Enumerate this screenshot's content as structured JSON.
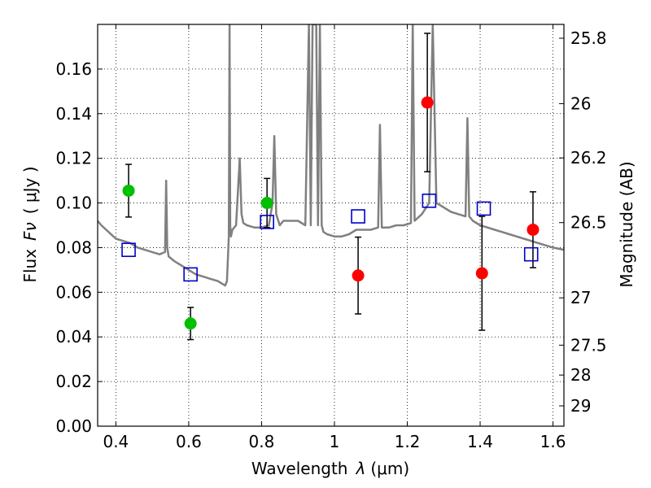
{
  "chart_data": {
    "type": "scatter",
    "title": "",
    "xlabel_parts": {
      "text": "Wavelength",
      "symbol": "λ",
      "unit": "(μm)"
    },
    "ylabel_parts": {
      "text": "Flux",
      "symbol": "Fν",
      "unit": "( μJy )"
    },
    "ylabel_right": "Magnitude (AB)",
    "xlim": [
      0.35,
      1.63
    ],
    "ylim": [
      0,
      0.18
    ],
    "grid": true,
    "grid_style": "dotted",
    "x_ticks": [
      0.4,
      0.6,
      0.8,
      1.0,
      1.2,
      1.4,
      1.6
    ],
    "x_tick_labels": [
      "0.4",
      "0.6",
      "0.8",
      "1",
      "1.2",
      "1.4",
      "1.6"
    ],
    "y_ticks": [
      0.0,
      0.02,
      0.04,
      0.06,
      0.08,
      0.1,
      0.12,
      0.14,
      0.16
    ],
    "y_tick_labels": [
      "0.00",
      "0.02",
      "0.04",
      "0.06",
      "0.08",
      "0.10",
      "0.12",
      "0.14",
      "0.16"
    ],
    "right_ticks": [
      {
        "label": "25.8",
        "flux": 0.1738
      },
      {
        "label": "26",
        "flux": 0.1445
      },
      {
        "label": "26.2",
        "flux": 0.1202
      },
      {
        "label": "26.5",
        "flux": 0.0912
      },
      {
        "label": "27",
        "flux": 0.0575
      },
      {
        "label": "27.5",
        "flux": 0.0363
      },
      {
        "label": "28",
        "flux": 0.0229
      },
      {
        "label": "29",
        "flux": 0.0091
      }
    ],
    "series": [
      {
        "marker": "circle",
        "color": "#00c000",
        "x": [
          0.435,
          0.605,
          0.815
        ],
        "y": [
          0.1055,
          0.046,
          0.1
        ],
        "yerr": [
          0.0118,
          0.0072,
          0.011
        ]
      },
      {
        "marker": "circle",
        "color": "#ff0000",
        "x": [
          1.065,
          1.255,
          1.405,
          1.545
        ],
        "y": [
          0.0675,
          0.145,
          0.0685,
          0.088
        ],
        "yerr": [
          0.0172,
          0.031,
          0.0255,
          0.017
        ]
      },
      {
        "marker": "open-square",
        "color": "#0000cc",
        "x": [
          0.435,
          0.605,
          0.815,
          1.065,
          1.26,
          1.41,
          1.54
        ],
        "y": [
          0.079,
          0.068,
          0.0915,
          0.094,
          0.101,
          0.0975,
          0.077
        ]
      },
      {
        "marker": "line",
        "color": "#808080",
        "x": [
          0.35,
          0.36,
          0.38,
          0.4,
          0.42,
          0.44,
          0.46,
          0.48,
          0.5,
          0.52,
          0.535,
          0.538,
          0.541,
          0.545,
          0.56,
          0.58,
          0.6,
          0.62,
          0.64,
          0.66,
          0.68,
          0.7,
          0.705,
          0.71,
          0.712,
          0.714,
          0.716,
          0.72,
          0.73,
          0.74,
          0.745,
          0.75,
          0.76,
          0.78,
          0.8,
          0.82,
          0.83,
          0.835,
          0.84,
          0.85,
          0.86,
          0.88,
          0.9,
          0.92,
          0.93,
          0.935,
          0.94,
          0.95,
          0.955,
          0.96,
          0.965,
          0.97,
          0.98,
          1.0,
          1.02,
          1.04,
          1.06,
          1.08,
          1.1,
          1.12,
          1.125,
          1.13,
          1.15,
          1.17,
          1.19,
          1.21,
          1.215,
          1.22,
          1.24,
          1.26,
          1.27,
          1.28,
          1.3,
          1.32,
          1.34,
          1.36,
          1.365,
          1.37,
          1.38,
          1.4,
          1.42,
          1.44,
          1.46,
          1.48,
          1.5,
          1.52,
          1.54,
          1.56,
          1.58,
          1.6,
          1.63
        ],
        "y": [
          0.092,
          0.09,
          0.087,
          0.084,
          0.083,
          0.082,
          0.08,
          0.079,
          0.078,
          0.077,
          0.078,
          0.11,
          0.08,
          0.076,
          0.074,
          0.072,
          0.07,
          0.068,
          0.067,
          0.066,
          0.065,
          0.063,
          0.065,
          0.085,
          0.18,
          0.09,
          0.085,
          0.088,
          0.09,
          0.12,
          0.095,
          0.091,
          0.09,
          0.089,
          0.089,
          0.09,
          0.1,
          0.13,
          0.095,
          0.09,
          0.092,
          0.092,
          0.092,
          0.09,
          0.18,
          0.09,
          0.18,
          0.18,
          0.09,
          0.18,
          0.09,
          0.087,
          0.086,
          0.085,
          0.085,
          0.086,
          0.088,
          0.088,
          0.088,
          0.089,
          0.135,
          0.089,
          0.089,
          0.09,
          0.09,
          0.091,
          0.18,
          0.092,
          0.095,
          0.1,
          0.18,
          0.1,
          0.098,
          0.096,
          0.095,
          0.094,
          0.138,
          0.094,
          0.092,
          0.09,
          0.089,
          0.088,
          0.087,
          0.086,
          0.085,
          0.084,
          0.083,
          0.082,
          0.081,
          0.08,
          0.079
        ]
      }
    ]
  }
}
